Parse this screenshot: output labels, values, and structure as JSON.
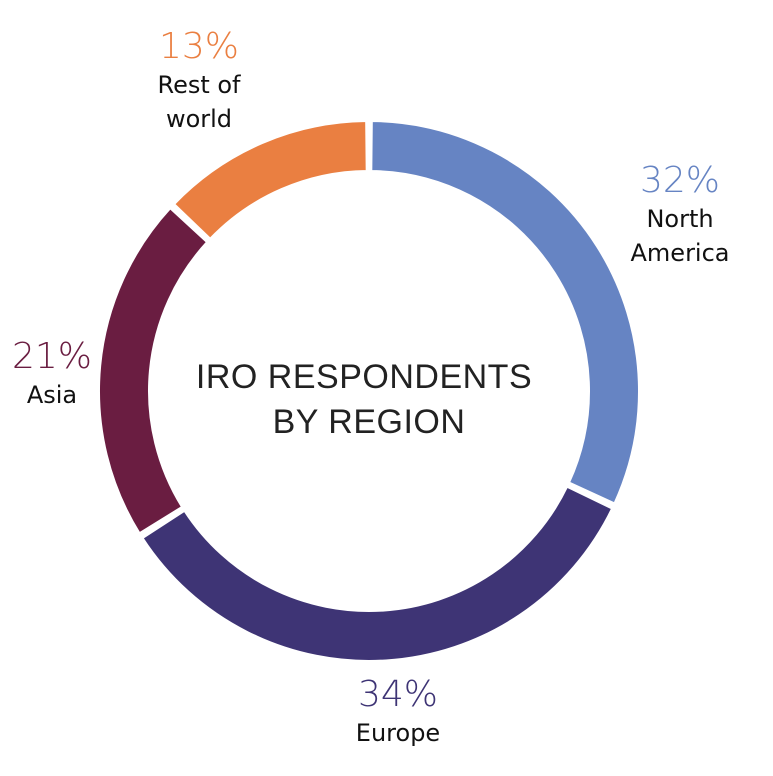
{
  "chart_data": {
    "type": "pie",
    "variant": "donut",
    "title_lines": [
      "IRO RESPONDENTS",
      "BY REGION"
    ],
    "start": "top",
    "direction": "clockwise",
    "slices": [
      {
        "label_lines": [
          "North",
          "America"
        ],
        "value": 32,
        "value_label": "32%",
        "color": "#6684C3"
      },
      {
        "label_lines": [
          "Europe"
        ],
        "value": 34,
        "value_label": "34%",
        "color": "#3E3475"
      },
      {
        "label_lines": [
          "Asia"
        ],
        "value": 21,
        "value_label": "21%",
        "color": "#6A1D41"
      },
      {
        "label_lines": [
          "Rest of",
          "world"
        ],
        "value": 13,
        "value_label": "13%",
        "color": "#EA7F41"
      }
    ]
  }
}
